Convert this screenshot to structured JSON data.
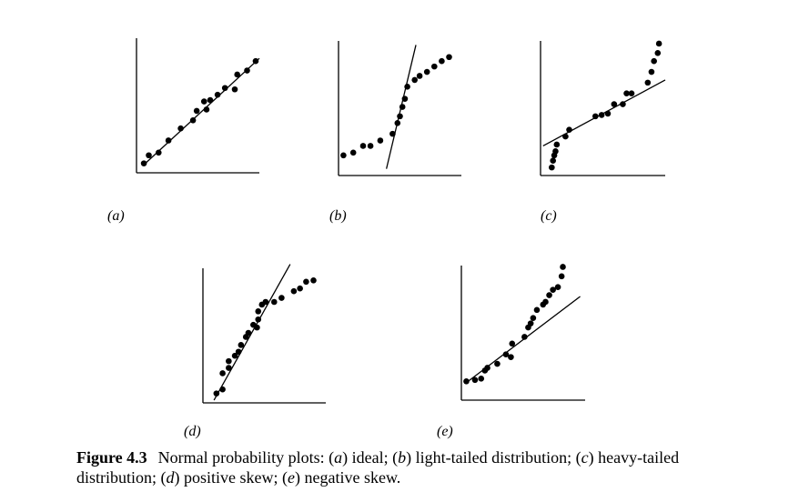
{
  "caption": {
    "figure_label": "Figure 4.3",
    "segments": [
      {
        "text": "Normal probability plots: (",
        "italic": false
      },
      {
        "text": "a",
        "italic": true
      },
      {
        "text": ") ideal; (",
        "italic": false
      },
      {
        "text": "b",
        "italic": true
      },
      {
        "text": ") light-tailed distribution; (",
        "italic": false
      },
      {
        "text": "c",
        "italic": true
      },
      {
        "text": ") heavy-tailed distribution; (",
        "italic": false
      },
      {
        "text": "d",
        "italic": true
      },
      {
        "text": ") positive skew; (",
        "italic": false
      },
      {
        "text": "e",
        "italic": true
      },
      {
        "text": ") negative skew.",
        "italic": false
      }
    ]
  },
  "chart_data": [
    {
      "id": "a",
      "type": "scatter",
      "label": "(a)",
      "xlim": [
        0,
        10
      ],
      "ylim": [
        0,
        10
      ],
      "x": [
        0.6,
        1.0,
        1.8,
        2.6,
        3.6,
        4.6,
        4.9,
        5.7,
        5.5,
        6.0,
        6.6,
        7.2,
        8.0,
        8.2,
        9.0,
        9.7
      ],
      "y": [
        0.7,
        1.3,
        1.5,
        2.4,
        3.3,
        3.9,
        4.6,
        4.7,
        5.3,
        5.4,
        5.8,
        6.3,
        6.2,
        7.3,
        7.6,
        8.3
      ],
      "reference_line": {
        "x": [
          0.6,
          10.0
        ],
        "y": [
          0.6,
          8.5
        ]
      }
    },
    {
      "id": "b",
      "type": "scatter",
      "label": "(b)",
      "xlim": [
        0,
        10
      ],
      "ylim": [
        0,
        10
      ],
      "x": [
        0.4,
        1.2,
        2.0,
        2.6,
        3.4,
        4.4,
        4.8,
        5.0,
        5.2,
        5.4,
        5.6,
        6.2,
        6.6,
        7.2,
        7.8,
        8.4,
        9.0
      ],
      "y": [
        1.5,
        1.7,
        2.2,
        2.2,
        2.6,
        3.1,
        3.9,
        4.4,
        5.1,
        5.7,
        6.6,
        7.1,
        7.4,
        7.7,
        8.1,
        8.5,
        8.8
      ],
      "reference_line": {
        "x": [
          3.9,
          6.3
        ],
        "y": [
          0.5,
          9.7
        ]
      }
    },
    {
      "id": "c",
      "type": "scatter",
      "label": "(c)",
      "xlim": [
        0,
        10
      ],
      "ylim": [
        0,
        10
      ],
      "x": [
        0.9,
        1.0,
        1.1,
        1.2,
        1.3,
        2.0,
        2.3,
        4.4,
        4.9,
        5.4,
        5.9,
        6.6,
        6.9,
        7.3,
        8.6,
        8.9,
        9.1,
        9.4,
        9.5
      ],
      "y": [
        0.6,
        1.1,
        1.5,
        1.8,
        2.3,
        2.9,
        3.4,
        4.4,
        4.5,
        4.6,
        5.3,
        5.3,
        6.1,
        6.1,
        6.9,
        7.7,
        8.5,
        9.1,
        9.8
      ],
      "reference_line": {
        "x": [
          0.2,
          10.0
        ],
        "y": [
          2.2,
          7.1
        ]
      }
    },
    {
      "id": "d",
      "type": "scatter",
      "label": "(d)",
      "xlim": [
        0,
        10
      ],
      "ylim": [
        0,
        10
      ],
      "x": [
        1.1,
        1.6,
        1.6,
        2.1,
        2.1,
        2.6,
        2.9,
        3.1,
        3.5,
        3.7,
        4.1,
        4.4,
        4.5,
        4.5,
        4.8,
        5.1,
        5.8,
        6.4,
        7.4,
        7.9,
        8.4,
        9.0
      ],
      "y": [
        0.7,
        1.0,
        2.2,
        2.6,
        3.1,
        3.5,
        3.8,
        4.3,
        4.9,
        5.2,
        5.8,
        5.6,
        6.2,
        6.8,
        7.3,
        7.5,
        7.5,
        7.8,
        8.3,
        8.5,
        9.0,
        9.1
      ],
      "reference_line": {
        "x": [
          0.9,
          7.1
        ],
        "y": [
          0.2,
          10.3
        ]
      }
    },
    {
      "id": "e",
      "type": "scatter",
      "label": "(e)",
      "xlim": [
        0,
        10
      ],
      "ylim": [
        0,
        10
      ],
      "x": [
        0.4,
        1.1,
        1.6,
        1.9,
        2.1,
        2.9,
        3.6,
        4.0,
        4.1,
        5.1,
        5.4,
        5.6,
        5.8,
        6.1,
        6.6,
        6.8,
        7.1,
        7.4,
        7.8,
        8.1,
        8.2
      ],
      "y": [
        1.4,
        1.5,
        1.6,
        2.2,
        2.4,
        2.7,
        3.4,
        3.2,
        4.2,
        4.7,
        5.4,
        5.7,
        6.1,
        6.7,
        7.1,
        7.3,
        7.8,
        8.2,
        8.4,
        9.2,
        9.9
      ],
      "reference_line": {
        "x": [
          0.4,
          9.6
        ],
        "y": [
          1.3,
          7.7
        ]
      }
    }
  ]
}
